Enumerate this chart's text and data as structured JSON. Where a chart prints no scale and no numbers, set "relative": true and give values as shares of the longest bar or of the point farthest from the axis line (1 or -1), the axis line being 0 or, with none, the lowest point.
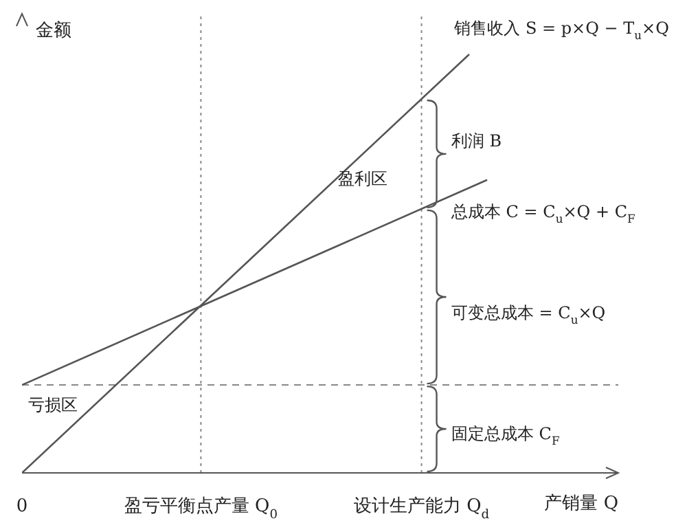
{
  "chart_data": {
    "type": "line",
    "relative": true,
    "xlabel": "产销量 Q",
    "ylabel": "金额",
    "xlim": [
      0,
      1
    ],
    "xticks": [
      {
        "value": 0,
        "label": "0"
      },
      {
        "value": 0.3,
        "label": "盈亏平衡点产量 Q$_{0}$"
      },
      {
        "value": 0.67,
        "label": "设计生产能力 Q$_{d}$"
      }
    ],
    "series": [
      {
        "x": [
          0,
          0.75
        ],
        "values": [
          0,
          1
        ],
        "color": "#555555"
      },
      {
        "x": [
          0,
          0.78
        ],
        "values": [
          0.21,
          0.7
        ],
        "color": "#555555"
      }
    ],
    "ref_lines": [
      {
        "axis": "x",
        "value": 0.3,
        "color": "#888888",
        "line_style": "dotted"
      },
      {
        "axis": "x",
        "value": 0.67,
        "color": "#888888",
        "line_style": "dotted"
      },
      {
        "axis": "y",
        "value": 0.21,
        "color": "#888888",
        "line_style": "dashed"
      }
    ],
    "annotations": [
      "销售收入 S = p×Q − T$_{u}$×Q",
      "利润 B",
      "总成本 C = C$_{u}$×Q + C$_{F}$",
      "可变总成本 = C$_{u}$×Q",
      "固定总成本 C$_{F}$",
      "盈利区",
      "亏损区"
    ],
    "grid": false,
    "legend": false,
    "marker": "none",
    "line_style": "solid"
  }
}
